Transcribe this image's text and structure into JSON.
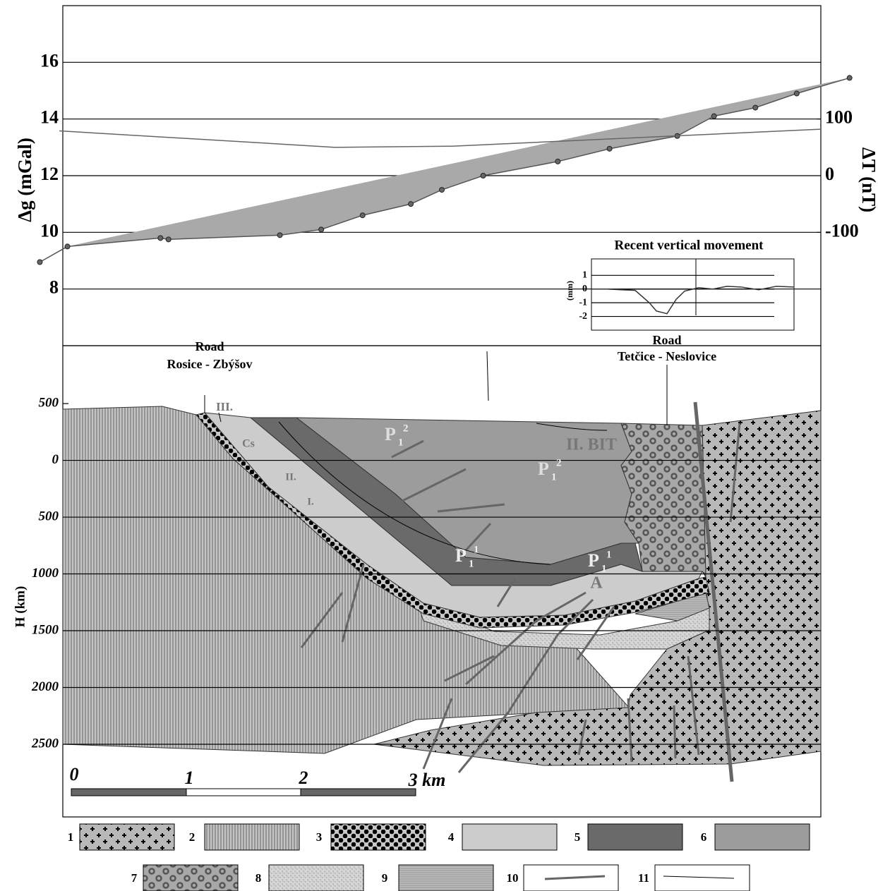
{
  "chart_data": [
    {
      "type": "line",
      "ylabel": "Δg (mGal)",
      "y2label": "ΔT (nT)",
      "xlim": [
        0,
        6.6
      ],
      "ylim": [
        6,
        18
      ],
      "yticks": [
        8,
        10,
        12,
        14,
        16
      ],
      "y2lim": [
        -300,
        300
      ],
      "y2ticks": [
        {
          "value": 100,
          "label": "100"
        },
        {
          "value": 0,
          "label": "0"
        },
        {
          "value": -100,
          "label": "-100"
        }
      ],
      "series": [
        {
          "color": "#555555",
          "x": [
            -0.2,
            0.04,
            0.85,
            0.92,
            1.89,
            2.25,
            2.61,
            3.03,
            3.3,
            3.66,
            4.31,
            4.76,
            5.35,
            5.67,
            6.03,
            6.39,
            6.85
          ],
          "values": [
            8.95,
            9.5,
            9.8,
            9.75,
            9.9,
            10.1,
            10.6,
            11.0,
            11.5,
            12.0,
            12.5,
            12.95,
            13.4,
            14.1,
            14.4,
            14.9,
            15.45
          ]
        },
        {
          "axis": "y2",
          "color": "#666666",
          "x": [
            -0.03,
            2.37,
            3.39,
            6.6
          ],
          "values": [
            79,
            50,
            52,
            82
          ]
        }
      ]
    },
    {
      "type": "line",
      "title": "Recent vertical movement",
      "ylabel": "(mm)",
      "xlabel": "Road",
      "xlim": [
        0,
        28.7
      ],
      "ylim": [
        -3,
        2.2
      ],
      "yticks": [
        1,
        0,
        -1,
        -2
      ],
      "x": [
        0,
        2.2,
        6.2,
        8.2,
        9.2,
        10.7,
        12,
        13.2,
        15.2,
        17.2,
        19.2,
        21.2,
        23.7,
        26.2,
        28.7
      ],
      "series": [
        {
          "color": "#333333",
          "values": [
            0,
            0,
            -0.1,
            -1,
            -1.6,
            -1.8,
            -0.75,
            -0.15,
            0.1,
            0,
            0.2,
            0.15,
            -0.05,
            0.2,
            0.15
          ]
        }
      ]
    },
    {
      "type": "section",
      "ylabel": "H (km)",
      "ylim": [
        -3140,
        1010
      ],
      "yticks": [
        {
          "value": 500,
          "label": "500"
        },
        {
          "value": 0,
          "label": "0"
        },
        {
          "value": -500,
          "label": "500"
        },
        {
          "value": -1000,
          "label": "1000"
        },
        {
          "value": -1500,
          "label": "1500"
        },
        {
          "value": -2000,
          "label": "2000"
        },
        {
          "value": -2500,
          "label": "2500"
        }
      ]
    }
  ],
  "cross_section": {
    "road1": "Road",
    "road1_name": "Rosice - Zbýšov",
    "road2_name": "Tetčice - Neslovice",
    "labels": [
      "III.",
      "Cs",
      "II.",
      "I.",
      "II. BIT",
      "A"
    ],
    "units": [
      {
        "base": "P",
        "sub": "1",
        "sup": "2"
      },
      {
        "base": "P",
        "sub": "1",
        "sup": "2"
      },
      {
        "base": "P",
        "sub": "1",
        "sup": "1"
      },
      {
        "base": "P",
        "sub": "1",
        "sup": "1"
      }
    ],
    "scale": [
      "0",
      "1",
      "2",
      "3 km"
    ]
  },
  "legend": [
    "1",
    "2",
    "3",
    "4",
    "5",
    "6",
    "7",
    "8",
    "9",
    "10",
    "11"
  ]
}
